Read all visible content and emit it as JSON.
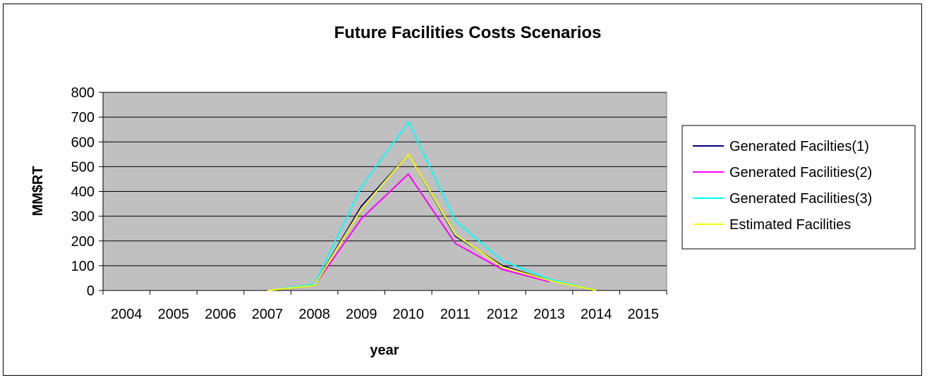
{
  "chart_data": {
    "type": "line",
    "title": "Future Facilities Costs Scenarios",
    "xlabel": "year",
    "ylabel": "MM$RT",
    "categories": [
      "2004",
      "2005",
      "2006",
      "2007",
      "2008",
      "2009",
      "2010",
      "2011",
      "2012",
      "2013",
      "2014",
      "2015"
    ],
    "ylim": [
      0,
      800
    ],
    "yticks": [
      "0",
      "100",
      "200",
      "300",
      "400",
      "500",
      "600",
      "700",
      "800"
    ],
    "grid": true,
    "legend": "right",
    "plot_background": "#c0c0c0",
    "series": [
      {
        "name": "Generated Facilties(1)",
        "color": "#000080",
        "values": [
          null,
          null,
          null,
          0,
          20,
          340,
          550,
          220,
          100,
          40,
          0,
          null
        ]
      },
      {
        "name": "Generated Facilities(2)",
        "color": "#ff00ff",
        "values": [
          null,
          null,
          null,
          0,
          20,
          290,
          470,
          190,
          85,
          35,
          null,
          null
        ]
      },
      {
        "name": "Generated Facilities(3)",
        "color": "#00ffff",
        "values": [
          null,
          null,
          null,
          0,
          25,
          420,
          680,
          280,
          120,
          45,
          0,
          null
        ]
      },
      {
        "name": "Estimated Facilities",
        "color": "#ffff00",
        "values": [
          null,
          null,
          null,
          0,
          20,
          330,
          550,
          225,
          95,
          40,
          0,
          null
        ]
      }
    ]
  }
}
